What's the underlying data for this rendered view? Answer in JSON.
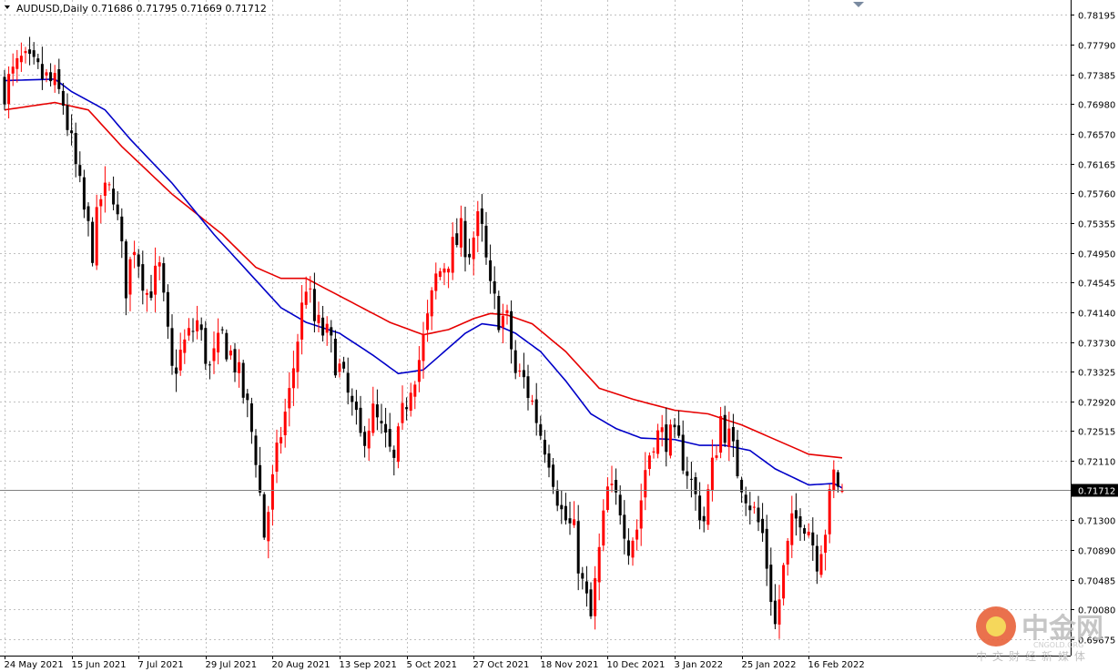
{
  "header": {
    "symbol_line": "AUDUSD,Daily  0.71686 0.71795 0.71669 0.71712"
  },
  "current_price_label": "0.71712",
  "watermark": {
    "brand": "中金网",
    "url": "CNGOLD.ORG",
    "subtitle": "中文财经新媒体"
  },
  "colors": {
    "bull": "#ff0000",
    "bear": "#000000",
    "ma_fast": "#0000c8",
    "ma_slow": "#e60000",
    "grid": "#c0c0c0",
    "current_price_bg": "#000000",
    "watermark_logo": "#e8623a"
  },
  "chart_data": {
    "type": "candlestick",
    "symbol": "AUDUSD",
    "timeframe": "Daily",
    "last_bar": {
      "open": 0.71686,
      "high": 0.71795,
      "low": 0.71669,
      "close": 0.71712
    },
    "ylim": [
      0.6945,
      0.784
    ],
    "y_ticks": [
      "0.78195",
      "0.77790",
      "0.77385",
      "0.76980",
      "0.76570",
      "0.76165",
      "0.75760",
      "0.75355",
      "0.74950",
      "0.74545",
      "0.74140",
      "0.73730",
      "0.73325",
      "0.72920",
      "0.72515",
      "0.72110",
      "0.71300",
      "0.70890",
      "0.70485",
      "0.70080",
      "0.69675"
    ],
    "x_ticks": [
      "24 May 2021",
      "15 Jun 2021",
      "7 Jul 2021",
      "29 Jul 2021",
      "20 Aug 2021",
      "13 Sep 2021",
      "5 Oct 2021",
      "27 Oct 2021",
      "18 Nov 2021",
      "10 Dec 2021",
      "3 Jan 2022",
      "25 Jan 2022",
      "16 Feb 2022"
    ],
    "x_tick_bar_index": [
      0,
      16,
      32,
      48,
      64,
      80,
      96,
      112,
      128,
      144,
      160,
      176,
      192
    ],
    "grid": true,
    "close_path_keypoints": [
      [
        0,
        0.772
      ],
      [
        4,
        0.7755
      ],
      [
        8,
        0.774
      ],
      [
        12,
        0.7722
      ],
      [
        14,
        0.77
      ],
      [
        16,
        0.764
      ],
      [
        19,
        0.755
      ],
      [
        21,
        0.75
      ],
      [
        23,
        0.757
      ],
      [
        26,
        0.758
      ],
      [
        29,
        0.745
      ],
      [
        31,
        0.751
      ],
      [
        34,
        0.744
      ],
      [
        37,
        0.747
      ],
      [
        40,
        0.733
      ],
      [
        43,
        0.737
      ],
      [
        46,
        0.74
      ],
      [
        49,
        0.7335
      ],
      [
        52,
        0.738
      ],
      [
        55,
        0.7345
      ],
      [
        58,
        0.728
      ],
      [
        60,
        0.722
      ],
      [
        62,
        0.711
      ],
      [
        64,
        0.718
      ],
      [
        66,
        0.725
      ],
      [
        68,
        0.73
      ],
      [
        70,
        0.738
      ],
      [
        72,
        0.7455
      ],
      [
        74,
        0.74
      ],
      [
        77,
        0.738
      ],
      [
        80,
        0.7335
      ],
      [
        83,
        0.728
      ],
      [
        85,
        0.724
      ],
      [
        88,
        0.7275
      ],
      [
        91,
        0.7235
      ],
      [
        93,
        0.7205
      ],
      [
        95,
        0.727
      ],
      [
        97,
        0.732
      ],
      [
        99,
        0.735
      ],
      [
        101,
        0.74
      ],
      [
        103,
        0.746
      ],
      [
        106,
        0.749
      ],
      [
        109,
        0.752
      ],
      [
        111,
        0.75
      ],
      [
        113,
        0.7535
      ],
      [
        114,
        0.752
      ],
      [
        116,
        0.744
      ],
      [
        118,
        0.741
      ],
      [
        120,
        0.74
      ],
      [
        122,
        0.733
      ],
      [
        124,
        0.732
      ],
      [
        126,
        0.729
      ],
      [
        128,
        0.725
      ],
      [
        130,
        0.722
      ],
      [
        133,
        0.714
      ],
      [
        136,
        0.711
      ],
      [
        138,
        0.704
      ],
      [
        140,
        0.6995
      ],
      [
        142,
        0.7085
      ],
      [
        144,
        0.717
      ],
      [
        147,
        0.715
      ],
      [
        149,
        0.71
      ],
      [
        151,
        0.712
      ],
      [
        153,
        0.72
      ],
      [
        155,
        0.7245
      ],
      [
        158,
        0.7245
      ],
      [
        161,
        0.723
      ],
      [
        163,
        0.72
      ],
      [
        165,
        0.716
      ],
      [
        167,
        0.713
      ],
      [
        169,
        0.72
      ],
      [
        171,
        0.727
      ],
      [
        173,
        0.724
      ],
      [
        175,
        0.72
      ],
      [
        177,
        0.717
      ],
      [
        179,
        0.714
      ],
      [
        181,
        0.711
      ],
      [
        183,
        0.703
      ],
      [
        184,
        0.6985
      ],
      [
        186,
        0.706
      ],
      [
        188,
        0.712
      ],
      [
        190,
        0.714
      ],
      [
        192,
        0.712
      ],
      [
        194,
        0.708
      ],
      [
        196,
        0.712
      ],
      [
        198,
        0.719
      ],
      [
        200,
        0.7171
      ]
    ],
    "ma_slow_keypoints": [
      [
        0,
        0.769
      ],
      [
        12,
        0.77
      ],
      [
        20,
        0.769
      ],
      [
        28,
        0.764
      ],
      [
        40,
        0.7575
      ],
      [
        52,
        0.752
      ],
      [
        60,
        0.7475
      ],
      [
        66,
        0.746
      ],
      [
        72,
        0.746
      ],
      [
        82,
        0.743
      ],
      [
        92,
        0.74
      ],
      [
        100,
        0.7383
      ],
      [
        106,
        0.739
      ],
      [
        112,
        0.7405
      ],
      [
        116,
        0.7412
      ],
      [
        120,
        0.741
      ],
      [
        126,
        0.7398
      ],
      [
        134,
        0.736
      ],
      [
        142,
        0.731
      ],
      [
        150,
        0.7295
      ],
      [
        160,
        0.728
      ],
      [
        168,
        0.7275
      ],
      [
        176,
        0.726
      ],
      [
        184,
        0.724
      ],
      [
        192,
        0.722
      ],
      [
        200,
        0.7215
      ]
    ],
    "ma_fast_keypoints": [
      [
        0,
        0.773
      ],
      [
        12,
        0.7732
      ],
      [
        16,
        0.7715
      ],
      [
        24,
        0.769
      ],
      [
        30,
        0.765
      ],
      [
        40,
        0.759
      ],
      [
        50,
        0.752
      ],
      [
        58,
        0.747
      ],
      [
        66,
        0.742
      ],
      [
        72,
        0.74
      ],
      [
        80,
        0.7385
      ],
      [
        88,
        0.7355
      ],
      [
        94,
        0.733
      ],
      [
        100,
        0.7335
      ],
      [
        106,
        0.7365
      ],
      [
        110,
        0.7385
      ],
      [
        114,
        0.7398
      ],
      [
        118,
        0.7395
      ],
      [
        122,
        0.7385
      ],
      [
        128,
        0.736
      ],
      [
        134,
        0.732
      ],
      [
        140,
        0.7275
      ],
      [
        146,
        0.7255
      ],
      [
        152,
        0.7242
      ],
      [
        160,
        0.724
      ],
      [
        166,
        0.7232
      ],
      [
        172,
        0.7232
      ],
      [
        178,
        0.7225
      ],
      [
        184,
        0.72
      ],
      [
        192,
        0.7178
      ],
      [
        198,
        0.718
      ],
      [
        200,
        0.7174
      ]
    ]
  }
}
